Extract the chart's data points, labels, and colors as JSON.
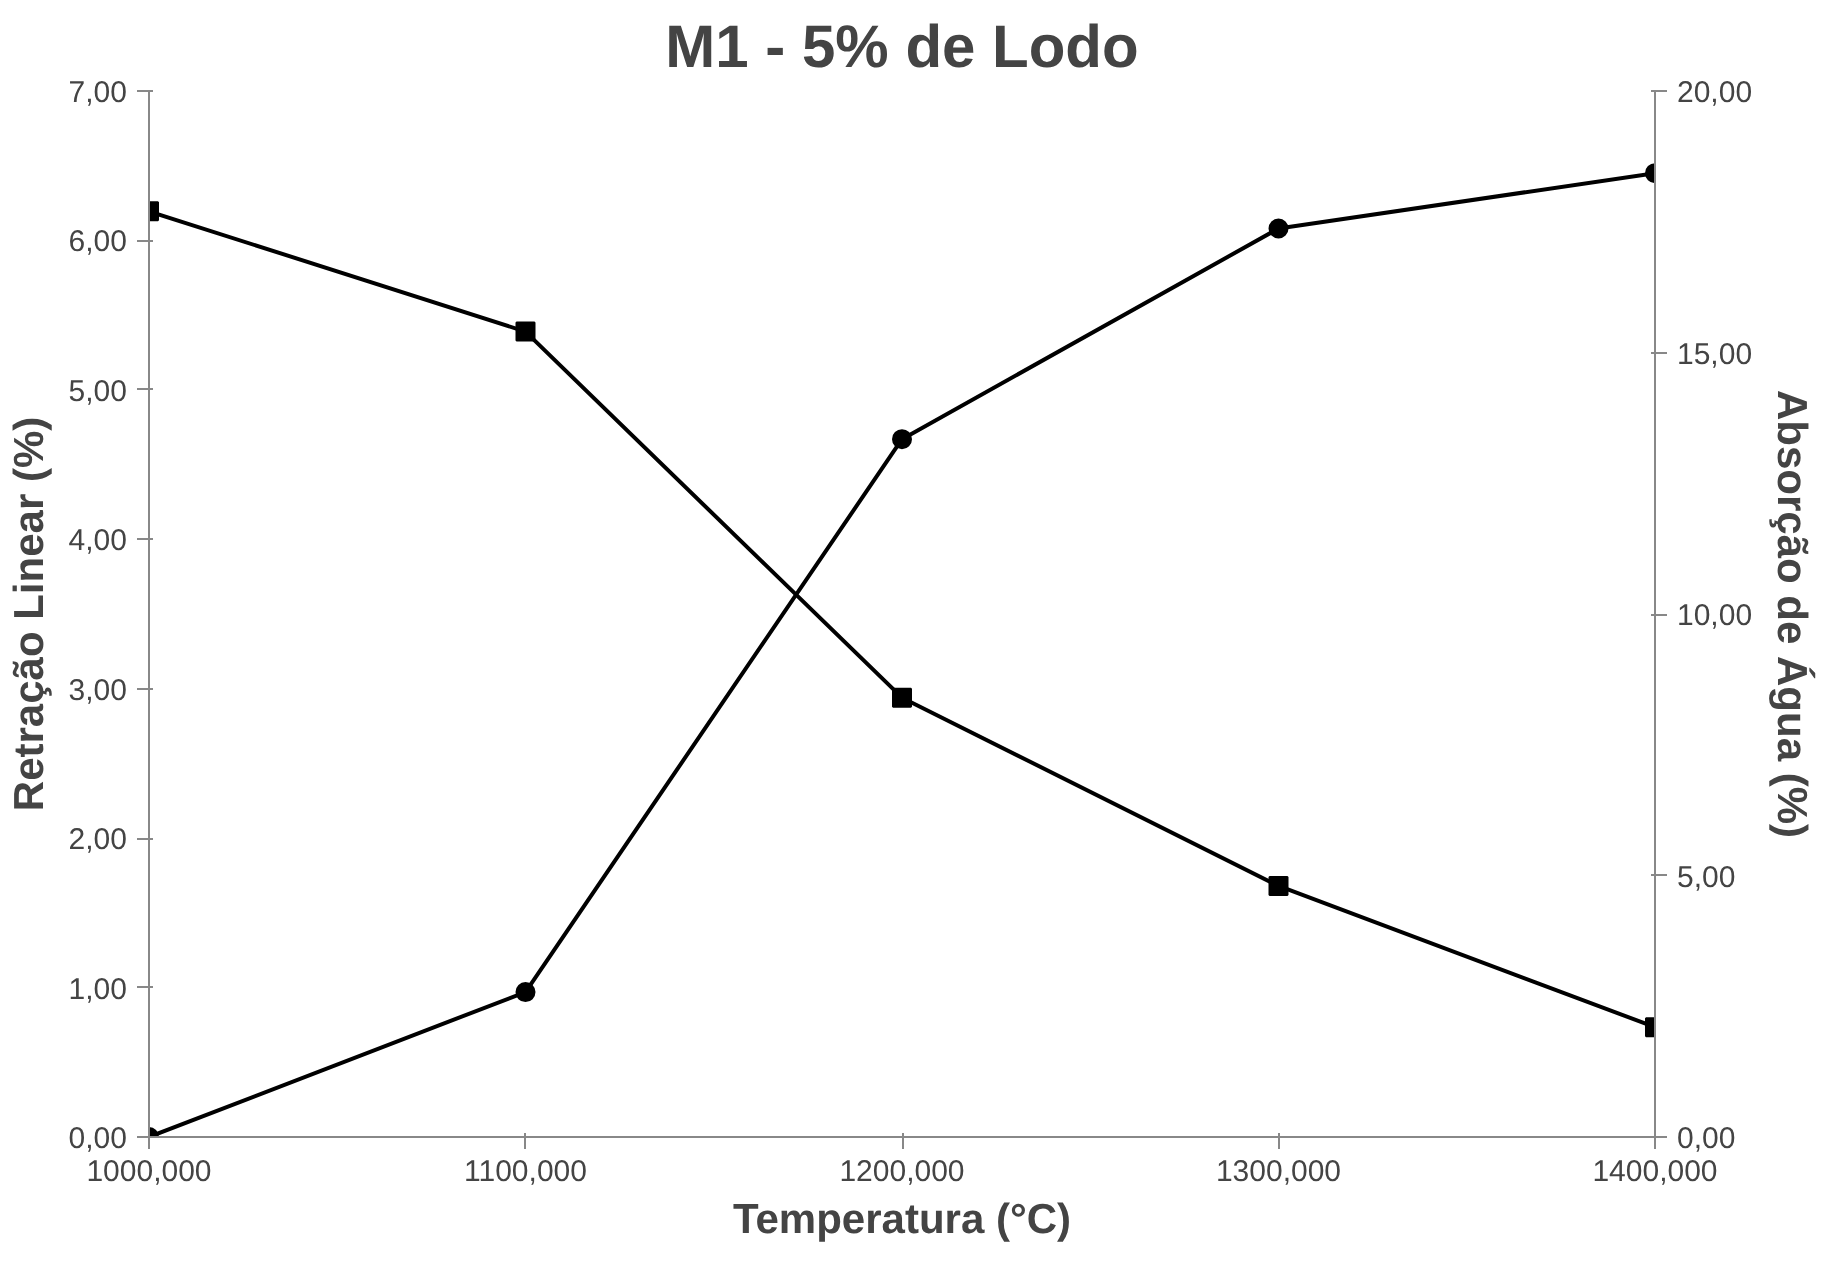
{
  "chart_data": {
    "type": "line",
    "title": "M1 - 5% de Lodo",
    "xlabel": "Temperatura (°C)",
    "ylabel": "Retração Linear (%)",
    "y2label": "Absorção de Água (%)",
    "categories": [
      "1000,000",
      "1100,000",
      "1200,000",
      "1300,000",
      "1400,000"
    ],
    "series": [
      {
        "color": "#000000",
        "marker": "circle",
        "values": [
          0,
          0.97,
          4.67,
          6.08,
          6.45
        ]
      },
      {
        "color": "#000000",
        "marker": "square",
        "axis": "y2",
        "values": [
          17.7,
          15.4,
          8.4,
          4.8,
          2.1
        ]
      }
    ],
    "ylim": [
      0,
      7
    ],
    "yticks": [
      {
        "value": 0,
        "label": "0,00"
      },
      {
        "value": 1,
        "label": "1,00"
      },
      {
        "value": 2,
        "label": "2,00"
      },
      {
        "value": 3,
        "label": "3,00"
      },
      {
        "value": 4,
        "label": "4,00"
      },
      {
        "value": 5,
        "label": "5,00"
      },
      {
        "value": 6,
        "label": "6,00"
      },
      {
        "value": 7,
        "label": "7,00"
      }
    ],
    "y2lim": [
      0,
      20
    ],
    "y2ticks": [
      {
        "value": 0,
        "label": "0,00"
      },
      {
        "value": 5,
        "label": "5,00"
      },
      {
        "value": 10,
        "label": "10,00"
      },
      {
        "value": 15,
        "label": "15,00"
      },
      {
        "value": 20,
        "label": "20,00"
      }
    ],
    "grid": false,
    "line_style": "solid"
  }
}
